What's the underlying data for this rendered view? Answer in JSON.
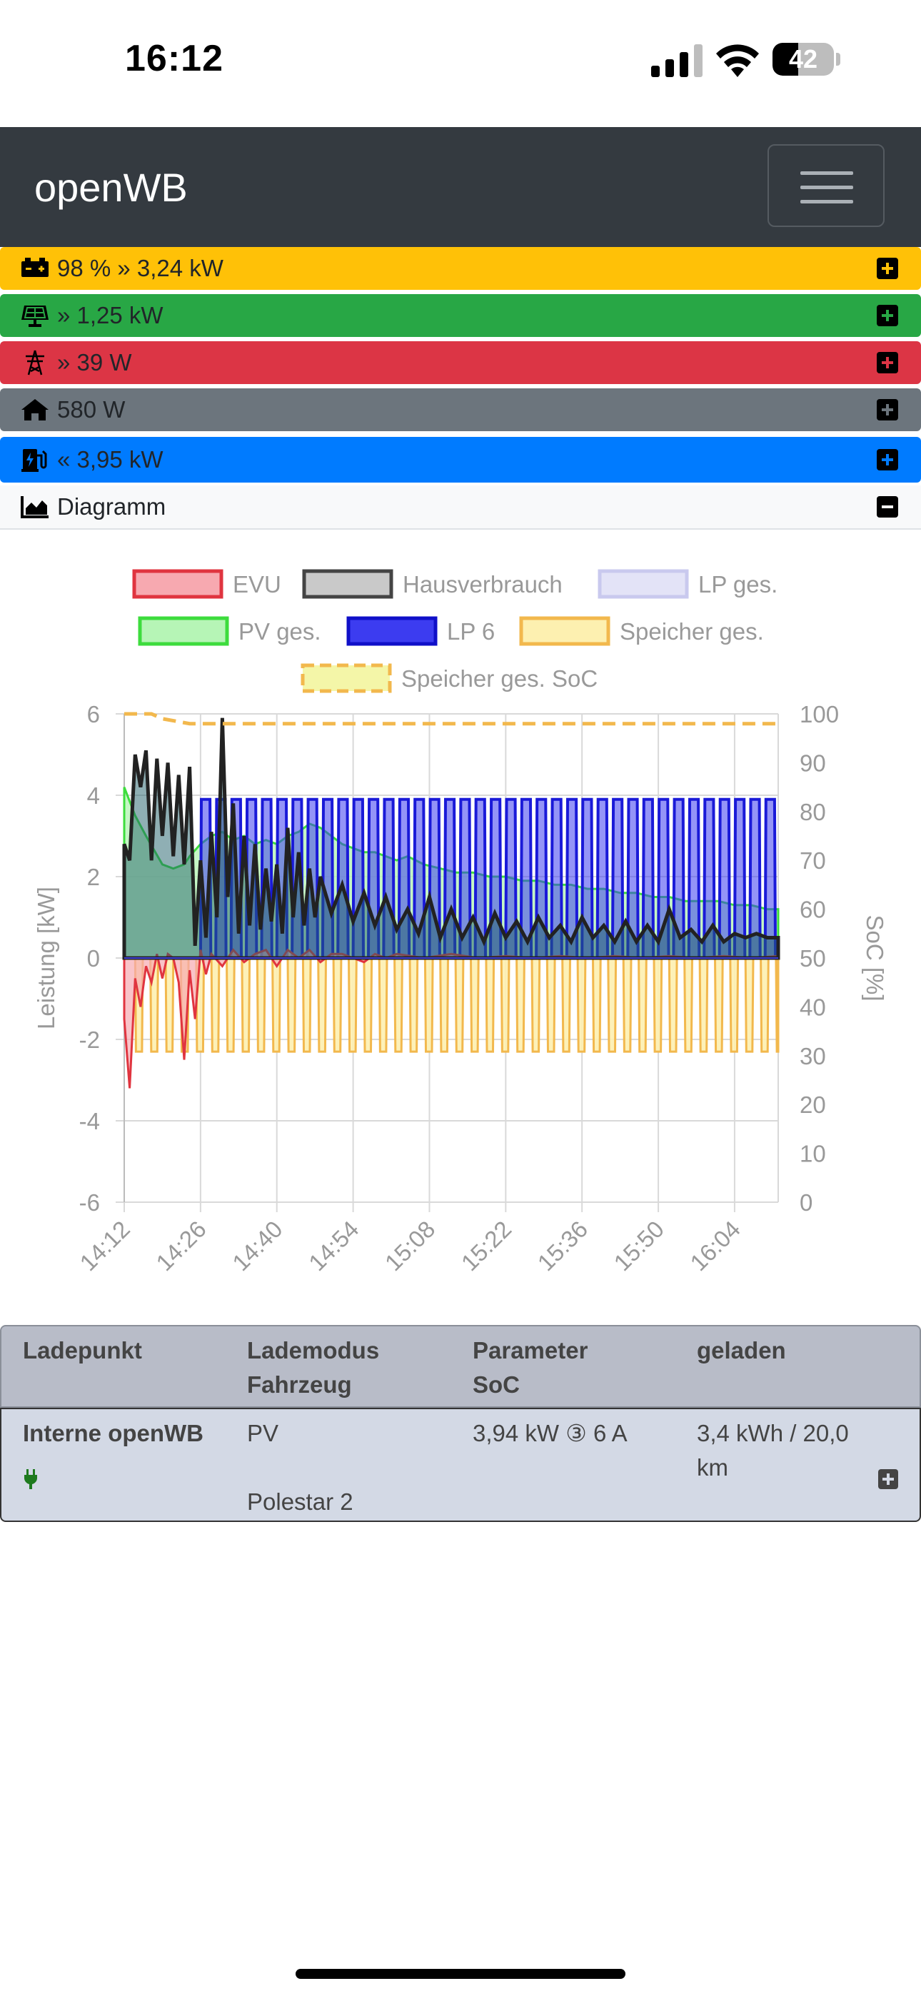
{
  "status_bar": {
    "time": "16:12",
    "battery": "42",
    "battery_level": 42
  },
  "app": {
    "title": "openWB"
  },
  "rows": {
    "speicher": {
      "text": "98 % » 3,24 kW",
      "icon": "car-battery-icon",
      "color": "#ffc107"
    },
    "pv": {
      "text": "» 1,25 kW",
      "icon": "solar-panel-icon",
      "color": "#28a745"
    },
    "evu": {
      "text": "» 39 W",
      "icon": "power-pylon-icon",
      "color": "#dc3545"
    },
    "haus": {
      "text": "580 W",
      "icon": "home-icon",
      "color": "#6c757d"
    },
    "ladepunkte": {
      "text": "« 3,95 kW",
      "icon": "charging-station-icon",
      "color": "#007bff"
    },
    "diagramm": {
      "text": "Diagramm",
      "icon": "area-chart-icon",
      "color": "#f8f9fa"
    }
  },
  "chart_data": {
    "type": "line",
    "legend": [
      {
        "label": "EVU",
        "fill": "#f7a9b0",
        "stroke": "#e0343f"
      },
      {
        "label": "Hausverbrauch",
        "fill": "#c9c9c9",
        "stroke": "#444444"
      },
      {
        "label": "LP ges.",
        "fill": "#e3e3f7",
        "stroke": "#c9c9ee"
      },
      {
        "label": "PV ges.",
        "fill": "#b6f5b6",
        "stroke": "#3ddc3d"
      },
      {
        "label": "LP 6",
        "fill": "#3c3cf0",
        "stroke": "#1010c8"
      },
      {
        "label": "Speicher ges.",
        "fill": "#fdf0b0",
        "stroke": "#f2b84d"
      },
      {
        "label": "Speicher ges. SoC",
        "fill": "#f4f6a8",
        "stroke": "#f2b84d",
        "dashed": true
      }
    ],
    "x_ticks": [
      "14:12",
      "14:26",
      "14:40",
      "14:54",
      "15:08",
      "15:22",
      "15:36",
      "15:50",
      "16:04"
    ],
    "y_left": {
      "label": "Leistung [kW]",
      "min": -6,
      "max": 6,
      "ticks": [
        "6",
        "4",
        "2",
        "0",
        "-2",
        "-4",
        "-6"
      ]
    },
    "y_right": {
      "label": "SoC [%]",
      "min": 0,
      "max": 100,
      "ticks": [
        "100",
        "90",
        "80",
        "70",
        "60",
        "50",
        "40",
        "30",
        "20",
        "10",
        "0"
      ]
    },
    "x_range_minutes": [
      0,
      120
    ],
    "series": {
      "pv": {
        "name": "PV ges.",
        "points": [
          [
            0,
            4.2
          ],
          [
            2,
            3.5
          ],
          [
            4,
            3.0
          ],
          [
            7,
            2.3
          ],
          [
            9,
            2.2
          ],
          [
            11,
            2.3
          ],
          [
            12,
            2.5
          ],
          [
            14,
            2.8
          ],
          [
            16,
            3.0
          ],
          [
            18,
            3.1
          ],
          [
            20,
            2.9
          ],
          [
            22,
            3.0
          ],
          [
            24,
            2.8
          ],
          [
            26,
            2.9
          ],
          [
            28,
            2.8
          ],
          [
            30,
            3.0
          ],
          [
            32,
            3.1
          ],
          [
            34,
            3.3
          ],
          [
            36,
            3.2
          ],
          [
            38,
            3.0
          ],
          [
            40,
            2.8
          ],
          [
            42,
            2.7
          ],
          [
            44,
            2.6
          ],
          [
            46,
            2.6
          ],
          [
            48,
            2.5
          ],
          [
            50,
            2.4
          ],
          [
            52,
            2.5
          ],
          [
            55,
            2.3
          ],
          [
            58,
            2.2
          ],
          [
            61,
            2.1
          ],
          [
            64,
            2.1
          ],
          [
            67,
            2.0
          ],
          [
            70,
            2.0
          ],
          [
            73,
            1.9
          ],
          [
            76,
            1.9
          ],
          [
            79,
            1.8
          ],
          [
            82,
            1.8
          ],
          [
            85,
            1.7
          ],
          [
            88,
            1.7
          ],
          [
            91,
            1.6
          ],
          [
            94,
            1.6
          ],
          [
            97,
            1.5
          ],
          [
            100,
            1.5
          ],
          [
            103,
            1.4
          ],
          [
            106,
            1.4
          ],
          [
            109,
            1.4
          ],
          [
            112,
            1.3
          ],
          [
            115,
            1.3
          ],
          [
            118,
            1.2
          ],
          [
            120,
            1.2
          ]
        ]
      },
      "evu": {
        "name": "EVU",
        "points": [
          [
            0,
            -1.5
          ],
          [
            1,
            -3.2
          ],
          [
            2,
            -0.5
          ],
          [
            3,
            -1.2
          ],
          [
            4,
            -0.2
          ],
          [
            5,
            -0.6
          ],
          [
            6,
            0.1
          ],
          [
            7,
            -0.5
          ],
          [
            8,
            0.1
          ],
          [
            9,
            0.0
          ],
          [
            10,
            -0.6
          ],
          [
            11,
            -2.5
          ],
          [
            12,
            -0.3
          ],
          [
            13,
            -1.5
          ],
          [
            14,
            0.2
          ],
          [
            15,
            -0.4
          ],
          [
            16,
            0.1
          ],
          [
            18,
            -0.2
          ],
          [
            20,
            0.2
          ],
          [
            22,
            -0.1
          ],
          [
            24,
            0.1
          ],
          [
            26,
            0.2
          ],
          [
            28,
            -0.2
          ],
          [
            30,
            0.2
          ],
          [
            32,
            0.0
          ],
          [
            34,
            0.2
          ],
          [
            36,
            -0.1
          ],
          [
            38,
            0.1
          ],
          [
            40,
            0.1
          ],
          [
            42,
            0.0
          ],
          [
            44,
            -0.1
          ],
          [
            46,
            0.1
          ],
          [
            48,
            0.0
          ],
          [
            50,
            0.1
          ],
          [
            55,
            0.0
          ],
          [
            60,
            0.1
          ],
          [
            65,
            0.0
          ],
          [
            70,
            0.05
          ],
          [
            75,
            0.0
          ],
          [
            80,
            0.05
          ],
          [
            85,
            0.0
          ],
          [
            90,
            0.05
          ],
          [
            95,
            0.0
          ],
          [
            100,
            0.05
          ],
          [
            105,
            0.0
          ],
          [
            110,
            0.05
          ],
          [
            115,
            0.0
          ],
          [
            120,
            0.05
          ]
        ]
      },
      "haus": {
        "name": "Hausverbrauch",
        "points": [
          [
            0,
            2.8
          ],
          [
            1,
            2.4
          ],
          [
            2,
            5.0
          ],
          [
            3,
            4.2
          ],
          [
            4,
            5.1
          ],
          [
            5,
            2.4
          ],
          [
            6,
            4.9
          ],
          [
            7,
            3.0
          ],
          [
            8,
            4.8
          ],
          [
            9,
            2.5
          ],
          [
            10,
            4.5
          ],
          [
            11,
            2.3
          ],
          [
            12,
            4.7
          ],
          [
            13,
            0.3
          ],
          [
            14,
            2.4
          ],
          [
            15,
            0.5
          ],
          [
            16,
            3.1
          ],
          [
            17,
            1.0
          ],
          [
            18,
            5.9
          ],
          [
            19,
            1.5
          ],
          [
            20,
            3.8
          ],
          [
            21,
            0.6
          ],
          [
            22,
            3.0
          ],
          [
            23,
            0.8
          ],
          [
            24,
            2.8
          ],
          [
            25,
            0.7
          ],
          [
            26,
            2.2
          ],
          [
            27,
            0.9
          ],
          [
            28,
            2.3
          ],
          [
            29,
            0.6
          ],
          [
            30,
            3.2
          ],
          [
            31,
            1.0
          ],
          [
            32,
            2.6
          ],
          [
            33,
            0.8
          ],
          [
            34,
            2.2
          ],
          [
            35,
            1.0
          ],
          [
            36,
            2.0
          ],
          [
            38,
            1.1
          ],
          [
            40,
            1.8
          ],
          [
            42,
            0.9
          ],
          [
            44,
            1.6
          ],
          [
            46,
            0.8
          ],
          [
            48,
            1.5
          ],
          [
            50,
            0.7
          ],
          [
            52,
            1.2
          ],
          [
            54,
            0.6
          ],
          [
            56,
            1.5
          ],
          [
            58,
            0.5
          ],
          [
            60,
            1.2
          ],
          [
            62,
            0.5
          ],
          [
            64,
            1.0
          ],
          [
            66,
            0.4
          ],
          [
            68,
            1.1
          ],
          [
            70,
            0.5
          ],
          [
            72,
            0.9
          ],
          [
            74,
            0.4
          ],
          [
            76,
            1.0
          ],
          [
            78,
            0.5
          ],
          [
            80,
            0.8
          ],
          [
            82,
            0.4
          ],
          [
            84,
            1.0
          ],
          [
            86,
            0.5
          ],
          [
            88,
            0.8
          ],
          [
            90,
            0.4
          ],
          [
            92,
            0.9
          ],
          [
            94,
            0.4
          ],
          [
            96,
            0.8
          ],
          [
            98,
            0.4
          ],
          [
            100,
            1.2
          ],
          [
            102,
            0.5
          ],
          [
            104,
            0.7
          ],
          [
            106,
            0.4
          ],
          [
            108,
            0.8
          ],
          [
            110,
            0.4
          ],
          [
            112,
            0.6
          ],
          [
            114,
            0.5
          ],
          [
            116,
            0.6
          ],
          [
            118,
            0.5
          ],
          [
            120,
            0.5
          ]
        ]
      },
      "lp6": {
        "name": "LP 6",
        "pulses": {
          "start": 14,
          "end": 120,
          "high": 3.9,
          "low": 0.0,
          "period": 2.8,
          "duty": 0.62
        }
      },
      "speicher": {
        "name": "Speicher ges.",
        "pulses": {
          "start": 2,
          "end": 120,
          "high": 0.0,
          "low": -2.3,
          "period": 2.8,
          "duty": 0.45
        }
      },
      "soc": {
        "name": "Speicher ges. SoC",
        "points": [
          [
            0,
            100
          ],
          [
            5,
            100
          ],
          [
            7,
            99
          ],
          [
            12,
            98
          ],
          [
            120,
            98
          ]
        ]
      }
    }
  },
  "table": {
    "headers": {
      "ladepunkt": "Ladepunkt",
      "lademodus": "Lademodus",
      "fahrzeug": "Fahrzeug",
      "parameter": "Parameter",
      "soc": "SoC",
      "geladen": "geladen"
    },
    "row": {
      "name": "Interne openWB",
      "mode": "PV",
      "vehicle": "Polestar 2",
      "param": "3,94 kW ③ 6 A",
      "charged_line1": "3,4 kWh / 20,0",
      "charged_line2": "km"
    }
  }
}
